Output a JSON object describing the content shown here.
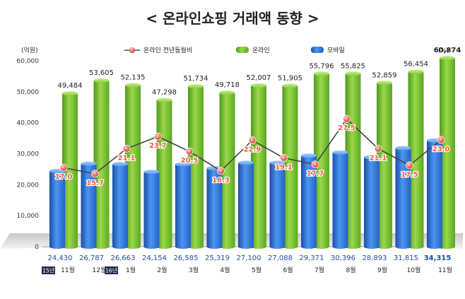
{
  "title": "< 온라인쇼핑 거래액 동향 >",
  "chart_data": {
    "type": "bar",
    "left_axis_unit": "(억원)",
    "right_axis_unit": "(%)",
    "y_left_ticks": [
      "0",
      "10,000",
      "20,000",
      "30,000",
      "40,000",
      "50,000",
      "60,000"
    ],
    "y_left_range": [
      0,
      60000
    ],
    "y_right_ticks": [
      "0",
      "5.0",
      "10.0",
      "15.0",
      "20.0",
      "25.0",
      "30.0",
      "35.0",
      "40.0"
    ],
    "y_right_range": [
      0,
      40
    ],
    "legend": [
      "온라인 전년동월비",
      "온라인",
      "모바일"
    ],
    "legend_placement": "top",
    "colors": {
      "online": "#6fba2c",
      "mobile": "#2a6fd6",
      "line": "#444444",
      "marker": "#e05a4e"
    },
    "categories": [
      "11월",
      "12월",
      "1월",
      "2월",
      "3월",
      "4월",
      "5월",
      "6월",
      "7월",
      "8월",
      "9월",
      "10월",
      "11월"
    ],
    "year_markers": [
      {
        "index": 0,
        "label": "15년"
      },
      {
        "index": 2,
        "label": "16년"
      }
    ],
    "series": [
      {
        "name": "온라인",
        "values": [
          49484,
          53605,
          52135,
          47298,
          51734,
          49718,
          52007,
          51905,
          55796,
          55825,
          52859,
          56454,
          60874
        ],
        "labels": [
          "49,484",
          "53,605",
          "52,135",
          "47,298",
          "51,734",
          "49,718",
          "52,007",
          "51,905",
          "55,796",
          "55,825",
          "52,859",
          "56,454",
          "60,874"
        ]
      },
      {
        "name": "모바일",
        "values": [
          24430,
          26787,
          26663,
          24154,
          26585,
          25319,
          27100,
          27088,
          29371,
          30396,
          28893,
          31815,
          34315
        ],
        "labels": [
          "24,430",
          "26,787",
          "26,663",
          "24,154",
          "26,585",
          "25,319",
          "27,100",
          "27,088",
          "29,371",
          "30,396",
          "28,893",
          "31,815",
          "34,315"
        ]
      },
      {
        "name": "온라인 전년동월비",
        "values": [
          17.0,
          15.7,
          21.1,
          23.7,
          20.5,
          16.3,
          22.9,
          19.1,
          17.7,
          27.5,
          21.1,
          17.5,
          23.0
        ],
        "labels": [
          "17.0",
          "15.7",
          "21.1",
          "23.7",
          "20.5",
          "16.3",
          "22.9",
          "19.1",
          "17.7",
          "27.5",
          "21.1",
          "17.5",
          "23.0"
        ]
      }
    ]
  }
}
